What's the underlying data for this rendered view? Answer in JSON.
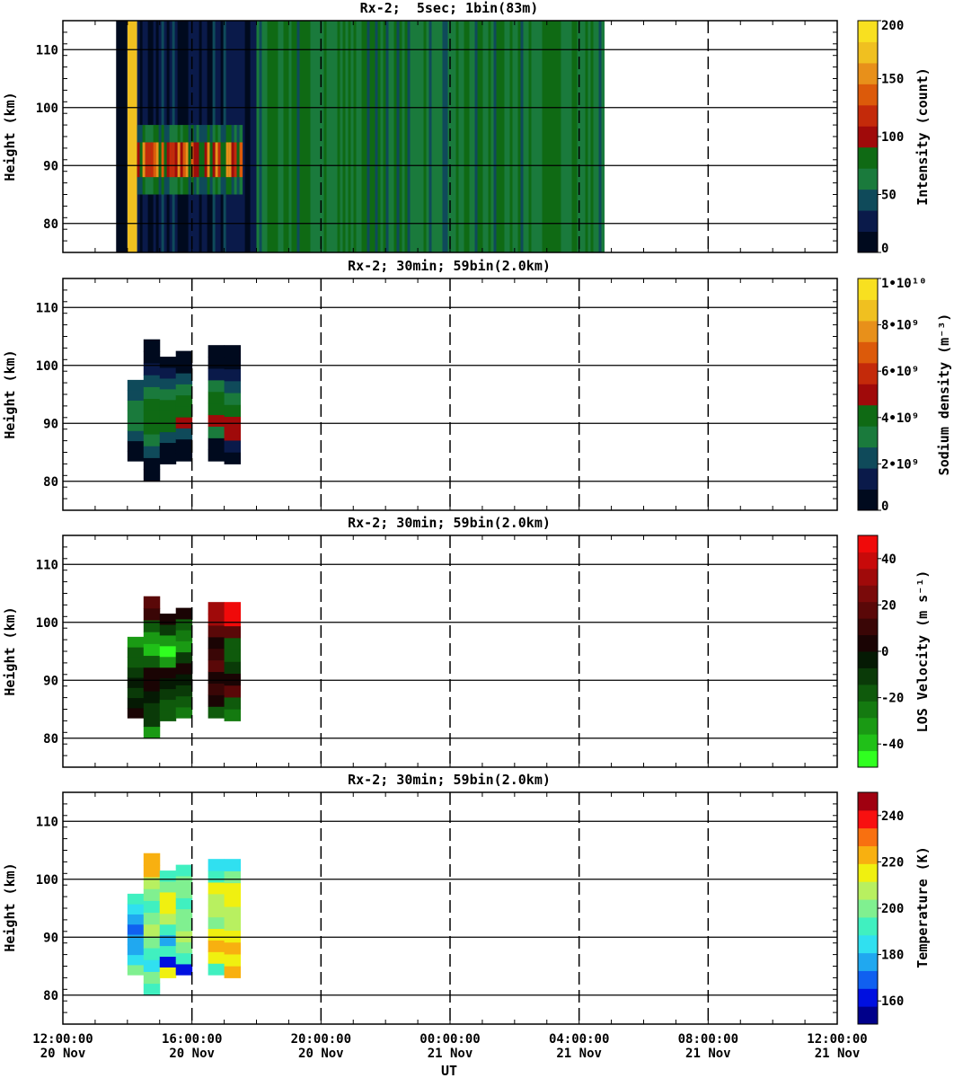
{
  "x_axis": {
    "title": "UT",
    "ticks": [
      {
        "time": "12:00:00",
        "date": "20 Nov",
        "hours": 0
      },
      {
        "time": "16:00:00",
        "date": "20 Nov",
        "hours": 4
      },
      {
        "time": "20:00:00",
        "date": "20 Nov",
        "hours": 8
      },
      {
        "time": "00:00:00",
        "date": "21 Nov",
        "hours": 12
      },
      {
        "time": "04:00:00",
        "date": "21 Nov",
        "hours": 16
      },
      {
        "time": "08:00:00",
        "date": "21 Nov",
        "hours": 20
      },
      {
        "time": "12:00:00",
        "date": "21 Nov",
        "hours": 24
      }
    ],
    "range_hours": [
      0,
      24
    ]
  },
  "chart_data": [
    {
      "type": "heatmap",
      "title": "Rx-2;  5sec; 1bin(83m)",
      "ylabel": "Height (km)",
      "ylim": [
        75,
        115
      ],
      "yticks": [
        80,
        90,
        100,
        110
      ],
      "colorbar": {
        "label": "Intensity (count)",
        "range": [
          0,
          200
        ],
        "ticks": [
          {
            "v": 0,
            "t": "0"
          },
          {
            "v": 50,
            "t": "50"
          },
          {
            "v": 100,
            "t": "100"
          },
          {
            "v": 150,
            "t": "150"
          },
          {
            "v": 200,
            "t": "200"
          }
        ],
        "colors": [
          "#000a1e",
          "#0a1a4a",
          "#0f4a5a",
          "#1a7a3c",
          "#0f6a14",
          "#a00a0a",
          "#c42a0a",
          "#dc5a0a",
          "#e8901a",
          "#f0c020",
          "#f8e020"
        ]
      },
      "data_extent_hours": [
        1.65,
        16.75
      ],
      "layers": [
        {
          "name": "start-edge",
          "x0": 2.0,
          "x1": 2.3,
          "y0": 75,
          "y1": 115,
          "v": 180
        },
        {
          "name": "noise-pre",
          "x0": 1.65,
          "x1": 2.0,
          "y0": 75,
          "y1": 115,
          "v": 5
        },
        {
          "name": "night-background",
          "x0": 2.3,
          "x1": 6.0,
          "y0": 75,
          "y1": 115,
          "v": 20
        },
        {
          "name": "sodium-layer",
          "x0": 2.3,
          "x1": 5.5,
          "y0": 85,
          "y1": 97,
          "v": 140
        },
        {
          "name": "day-background",
          "x0": 6.0,
          "x1": 16.75,
          "y0": 75,
          "y1": 115,
          "v": 70
        }
      ]
    },
    {
      "type": "heatmap",
      "title": "Rx-2; 30min; 59bin(2.0km)",
      "ylabel": "Height (km)",
      "ylim": [
        75,
        115
      ],
      "yticks": [
        80,
        90,
        100,
        110
      ],
      "colorbar": {
        "label": "Sodium density (m⁻³)",
        "range": [
          0,
          10000000000
        ],
        "ticks": [
          {
            "v": 0,
            "t": "0"
          },
          {
            "v": 2000000000,
            "t": "2•10⁹"
          },
          {
            "v": 4000000000,
            "t": "4•10⁹"
          },
          {
            "v": 6000000000,
            "t": "6•10⁹"
          },
          {
            "v": 8000000000,
            "t": "8•10⁹"
          },
          {
            "v": 10000000000,
            "t": "1•10¹⁰"
          }
        ],
        "colors": [
          "#000a1e",
          "#0a1a4a",
          "#0f4a5a",
          "#1a7a3c",
          "#0f6a14",
          "#a00a0a",
          "#c42a0a",
          "#dc5a0a",
          "#e8901a",
          "#f0c020",
          "#f8e020"
        ]
      },
      "columns": [
        {
          "t": 2.25,
          "bottom": 83.5,
          "top": 97.5,
          "profile": [
            0.1,
            0.6,
            2.2,
            3.0,
            3.2,
            3.0,
            2.6,
            2.2
          ]
        },
        {
          "t": 2.75,
          "bottom": 80.0,
          "top": 104.5,
          "profile": [
            0.1,
            0.4,
            2.0,
            3.6,
            4.2,
            4.2,
            3.8,
            3.0,
            2.0,
            1.0,
            0.4,
            0.1
          ]
        },
        {
          "t": 3.25,
          "bottom": 83.0,
          "top": 101.5,
          "profile": [
            0.2,
            0.6,
            2.6,
            4.0,
            4.5,
            4.2,
            3.6,
            2.6,
            1.2,
            0.3
          ]
        },
        {
          "t": 3.75,
          "bottom": 83.5,
          "top": 102.5,
          "profile": [
            0.2,
            0.8,
            2.4,
            5.0,
            4.5,
            4.0,
            3.2,
            2.0,
            0.8,
            0.2
          ]
        },
        {
          "t": 4.75,
          "bottom": 83.5,
          "top": 103.5,
          "profile": [
            0.2,
            0.9,
            3.0,
            5.0,
            4.4,
            3.8,
            2.8,
            1.5,
            0.6,
            0.2
          ]
        },
        {
          "t": 5.25,
          "bottom": 83.0,
          "top": 103.5,
          "profile": [
            0.2,
            1.0,
            5.2,
            5.0,
            4.2,
            3.4,
            2.4,
            1.2,
            0.5,
            0.1
          ]
        }
      ]
    },
    {
      "type": "heatmap",
      "title": "Rx-2; 30min; 59bin(2.0km)",
      "ylabel": "Height (km)",
      "ylim": [
        75,
        115
      ],
      "yticks": [
        80,
        90,
        100,
        110
      ],
      "colorbar": {
        "label": "LOS Velocity (m s⁻¹)",
        "range": [
          -50,
          50
        ],
        "ticks": [
          {
            "v": -40,
            "t": "-40"
          },
          {
            "v": -20,
            "t": "-20"
          },
          {
            "v": 0,
            "t": "0"
          },
          {
            "v": 20,
            "t": "20"
          },
          {
            "v": 40,
            "t": "40"
          }
        ],
        "colors": [
          "#30ff20",
          "#20c018",
          "#1a9a14",
          "#147a10",
          "#0f5a0c",
          "#0a3a08",
          "#051a04",
          "#1a0404",
          "#3a0606",
          "#5a0808",
          "#7a0a0a",
          "#a00a0a",
          "#c80a0a",
          "#f00a0a"
        ]
      },
      "columns": [
        {
          "t": 2.25,
          "bottom": 83.5,
          "top": 97.5,
          "profile": [
            5,
            -5,
            -10,
            -5,
            -8,
            -15,
            -20,
            -30
          ]
        },
        {
          "t": 2.75,
          "bottom": 80.0,
          "top": 104.5,
          "profile": [
            -30,
            -10,
            -12,
            -5,
            5,
            0,
            -20,
            -40,
            -35,
            -20,
            10,
            20
          ]
        },
        {
          "t": 3.25,
          "bottom": 83.0,
          "top": 101.5,
          "profile": [
            -20,
            -15,
            -10,
            -5,
            2,
            -30,
            -45,
            -35,
            -10,
            5
          ]
        },
        {
          "t": 3.75,
          "bottom": 83.5,
          "top": 102.5,
          "profile": [
            -25,
            -15,
            -10,
            -5,
            5,
            -10,
            -30,
            -25,
            -15,
            0
          ]
        },
        {
          "t": 4.75,
          "bottom": 83.5,
          "top": 103.5,
          "profile": [
            -15,
            5,
            10,
            5,
            15,
            10,
            0,
            20,
            30,
            35
          ]
        },
        {
          "t": 5.25,
          "bottom": 83.0,
          "top": 103.5,
          "profile": [
            -25,
            -15,
            20,
            5,
            -10,
            -20,
            -15,
            20,
            45,
            50
          ]
        }
      ]
    },
    {
      "type": "heatmap",
      "title": "Rx-2; 30min; 59bin(2.0km)",
      "ylabel": "Height (km)",
      "ylim": [
        75,
        115
      ],
      "yticks": [
        80,
        90,
        100,
        110
      ],
      "colorbar": {
        "label": "Temperature (K)",
        "range": [
          150,
          250
        ],
        "ticks": [
          {
            "v": 160,
            "t": "160"
          },
          {
            "v": 180,
            "t": "180"
          },
          {
            "v": 200,
            "t": "200"
          },
          {
            "v": 220,
            "t": "220"
          },
          {
            "v": 240,
            "t": "240"
          }
        ],
        "colors": [
          "#00008a",
          "#0010e0",
          "#1060f0",
          "#20a8f0",
          "#30e0f0",
          "#40f0c0",
          "#80f090",
          "#b8f060",
          "#f0f010",
          "#f8b010",
          "#f87010",
          "#f81010",
          "#a00010"
        ]
      },
      "columns": [
        {
          "t": 2.25,
          "bottom": 83.5,
          "top": 97.5,
          "profile": [
            200,
            185,
            180,
            175,
            172,
            175,
            185,
            195
          ]
        },
        {
          "t": 2.75,
          "bottom": 80.0,
          "top": 104.5,
          "profile": [
            195,
            198,
            185,
            195,
            200,
            205,
            200,
            195,
            200,
            210,
            220,
            225
          ]
        },
        {
          "t": 3.25,
          "bottom": 83.0,
          "top": 101.5,
          "profile": [
            215,
            165,
            190,
            175,
            195,
            205,
            215,
            218,
            200,
            195
          ]
        },
        {
          "t": 3.75,
          "bottom": 83.5,
          "top": 102.5,
          "profile": [
            165,
            190,
            200,
            205,
            200,
            198,
            195,
            200,
            200,
            195
          ]
        },
        {
          "t": 4.75,
          "bottom": 83.5,
          "top": 103.5,
          "profile": [
            190,
            215,
            220,
            218,
            200,
            205,
            210,
            215,
            195,
            185
          ]
        },
        {
          "t": 5.25,
          "bottom": 83.0,
          "top": 103.5,
          "profile": [
            220,
            215,
            222,
            212,
            205,
            208,
            212,
            218,
            200,
            185
          ]
        }
      ]
    }
  ]
}
